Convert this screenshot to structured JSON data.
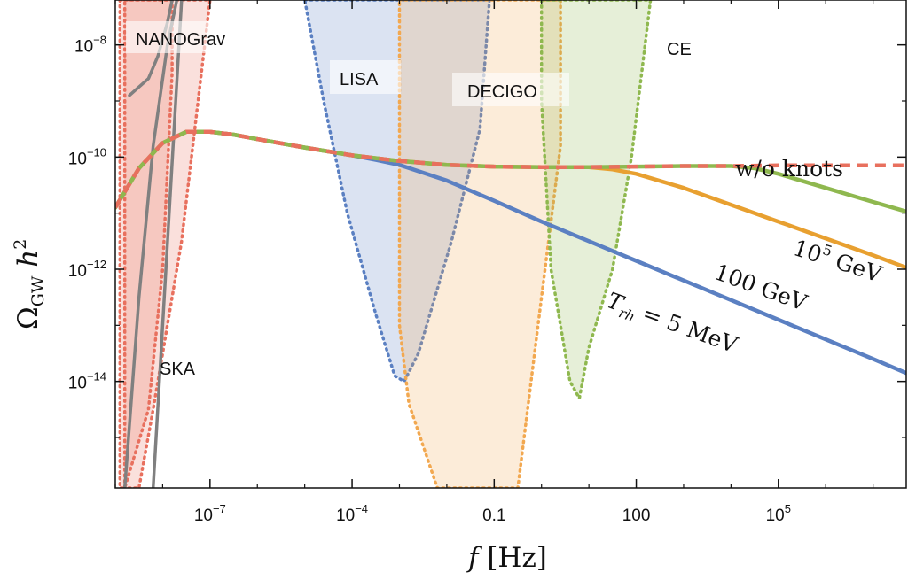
{
  "chart_data": {
    "type": "line",
    "xlabel": "f [Hz]",
    "ylabel": "Ω_GW h²",
    "x_scale": "log",
    "y_scale": "log",
    "xlim_log10": [
      -9,
      7.7
    ],
    "ylim_log10": [
      -15.9,
      -7.2
    ],
    "x_ticks": [
      {
        "log10": -7,
        "base": "10",
        "exp": "−7"
      },
      {
        "log10": -4,
        "base": "10",
        "exp": "−4"
      },
      {
        "log10": -1,
        "base": "0.1",
        "exp": ""
      },
      {
        "log10": 2,
        "base": "100",
        "exp": ""
      },
      {
        "log10": 5,
        "base": "10",
        "exp": "5"
      }
    ],
    "y_ticks": [
      {
        "log10": -8,
        "base": "10",
        "exp": "−8"
      },
      {
        "log10": -10,
        "base": "10",
        "exp": "−10"
      },
      {
        "log10": -12,
        "base": "10",
        "exp": "−12"
      },
      {
        "log10": -14,
        "base": "10",
        "exp": "−14"
      }
    ],
    "regions": [
      {
        "name": "NANOGrav",
        "color": "#e8705e",
        "polygon": [
          [
            -8.9,
            -7.2
          ],
          [
            -7.8,
            -7.2
          ],
          [
            -7.8,
            -8.5
          ],
          [
            -8.0,
            -12.0
          ],
          [
            -8.3,
            -14.5
          ],
          [
            -8.8,
            -15.9
          ],
          [
            -8.9,
            -15.9
          ]
        ]
      },
      {
        "name": "SKA",
        "color": "#e8705e",
        "polygon": [
          [
            -8.8,
            -7.2
          ],
          [
            -7.0,
            -7.2
          ],
          [
            -7.6,
            -11.5
          ],
          [
            -8.2,
            -14.5
          ],
          [
            -8.5,
            -15.9
          ],
          [
            -8.8,
            -15.9
          ]
        ]
      },
      {
        "name": "LISA",
        "color": "#5b80c2",
        "polygon": [
          [
            -5.0,
            -7.2
          ],
          [
            -1.1,
            -7.2
          ],
          [
            -1.3,
            -9.5
          ],
          [
            -1.9,
            -11.5
          ],
          [
            -2.6,
            -13.5
          ],
          [
            -2.9,
            -14.0
          ],
          [
            -3.1,
            -13.9
          ],
          [
            -3.5,
            -12.8
          ],
          [
            -4.1,
            -11.0
          ],
          [
            -4.6,
            -9.0
          ],
          [
            -5.0,
            -7.2
          ]
        ]
      },
      {
        "name": "DECIGO",
        "color": "#f2a850",
        "polygon": [
          [
            -3.0,
            -7.2
          ],
          [
            0.4,
            -7.2
          ],
          [
            0.4,
            -9.8
          ],
          [
            0.0,
            -12.5
          ],
          [
            -0.5,
            -15.9
          ],
          [
            -2.2,
            -15.9
          ],
          [
            -2.8,
            -14.4
          ],
          [
            -3.0,
            -13.0
          ]
        ]
      },
      {
        "name": "CE",
        "color": "#8fb84f",
        "polygon": [
          [
            0.0,
            -7.2
          ],
          [
            1.3,
            -7.2
          ],
          [
            2.3,
            -7.2
          ],
          [
            1.9,
            -10.0
          ],
          [
            1.5,
            -12.0
          ],
          [
            1.0,
            -13.4
          ],
          [
            0.8,
            -14.3
          ],
          [
            0.6,
            -14.0
          ],
          [
            0.2,
            -12.0
          ],
          [
            0.0,
            -9.0
          ]
        ]
      }
    ],
    "series": [
      {
        "name": "w/o knots",
        "color": "#e8705e",
        "style": "dashed",
        "x": [
          -9,
          -8.5,
          -8,
          -7.5,
          -7,
          -6.5,
          -6,
          -5,
          -4,
          -3,
          -2,
          -1,
          0,
          1,
          2,
          3,
          4,
          5,
          6,
          7,
          7.7
        ],
        "y": [
          -10.9,
          -10.2,
          -9.75,
          -9.55,
          -9.55,
          -9.6,
          -9.68,
          -9.83,
          -9.97,
          -10.07,
          -10.14,
          -10.17,
          -10.18,
          -10.18,
          -10.17,
          -10.16,
          -10.16,
          -10.15,
          -10.15,
          -10.15,
          -10.15
        ]
      },
      {
        "name": "10^5 GeV",
        "color": "#8fb84f",
        "style": "solid",
        "x": [
          -9,
          -8.5,
          -8,
          -7.5,
          -7,
          -6.5,
          -6,
          -5,
          -4,
          -3,
          -2,
          -1,
          0,
          1,
          2,
          3,
          4,
          4.5,
          5,
          6,
          7,
          7.7
        ],
        "y": [
          -10.9,
          -10.2,
          -9.75,
          -9.55,
          -9.55,
          -9.6,
          -9.68,
          -9.83,
          -9.97,
          -10.07,
          -10.14,
          -10.17,
          -10.18,
          -10.18,
          -10.17,
          -10.16,
          -10.16,
          -10.2,
          -10.3,
          -10.55,
          -10.8,
          -10.97
        ]
      },
      {
        "name": "100 GeV",
        "color": "#e8a030",
        "style": "solid",
        "x": [
          -9,
          -8.5,
          -8,
          -7.5,
          -7,
          -6.5,
          -6,
          -5,
          -4,
          -3,
          -2,
          -1,
          0,
          1,
          1.5,
          2,
          3,
          4,
          5,
          6,
          7,
          7.7
        ],
        "y": [
          -10.9,
          -10.2,
          -9.75,
          -9.55,
          -9.55,
          -9.6,
          -9.68,
          -9.83,
          -9.97,
          -10.07,
          -10.14,
          -10.17,
          -10.18,
          -10.18,
          -10.22,
          -10.3,
          -10.55,
          -10.85,
          -11.15,
          -11.45,
          -11.75,
          -11.97
        ]
      },
      {
        "name": "T_rh = 5 MeV",
        "color": "#5b80c2",
        "style": "solid",
        "x": [
          -9,
          -8.5,
          -8,
          -7.5,
          -7,
          -6.5,
          -6,
          -5,
          -4,
          -3.5,
          -3,
          -2,
          -1,
          0,
          1,
          2,
          3,
          4,
          5,
          6,
          7,
          7.7
        ],
        "y": [
          -10.9,
          -10.2,
          -9.75,
          -9.55,
          -9.55,
          -9.6,
          -9.68,
          -9.83,
          -9.97,
          -10.05,
          -10.14,
          -10.42,
          -10.78,
          -11.15,
          -11.5,
          -11.85,
          -12.2,
          -12.55,
          -12.9,
          -13.25,
          -13.6,
          -13.85
        ]
      },
      {
        "name": "SKA",
        "color": "#808080",
        "style": "solid",
        "x": [
          -8.2,
          -7.6
        ],
        "y": [
          -15.9,
          -7.2
        ]
      },
      {
        "name": "NANOGrav",
        "color": "#808080",
        "style": "solid",
        "x": [
          -8.8,
          -8.5,
          -8.2,
          -7.9,
          -7.7
        ],
        "y": [
          -15.9,
          -12.5,
          -9.8,
          -8.0,
          -7.2
        ]
      },
      {
        "name": "NANOGrav",
        "color": "#808080",
        "style": "solid",
        "x": [
          -8.7,
          -8.3,
          -8.1,
          -7.9,
          -7.8
        ],
        "y": [
          -8.9,
          -8.6,
          -8.2,
          -7.6,
          -7.2
        ]
      }
    ],
    "labels": {
      "nanograv": "NANOGrav",
      "ska": "SKA",
      "lisa": "LISA",
      "decigo": "DECIGO",
      "ce": "CE",
      "wo_knots": "w/o knots",
      "t1e5_base": "10",
      "t1e5_exp": "5",
      "t1e5_unit": " GeV",
      "t100": "100 GeV",
      "trh_T": "T",
      "trh_sub": "rh",
      "trh_rest": " = 5 MeV",
      "ylabel_omega": "Ω",
      "ylabel_sub": "GW",
      "ylabel_h": " h",
      "ylabel_sup": "2",
      "xlabel_f": "f",
      "xlabel_unit": " [Hz]"
    }
  }
}
